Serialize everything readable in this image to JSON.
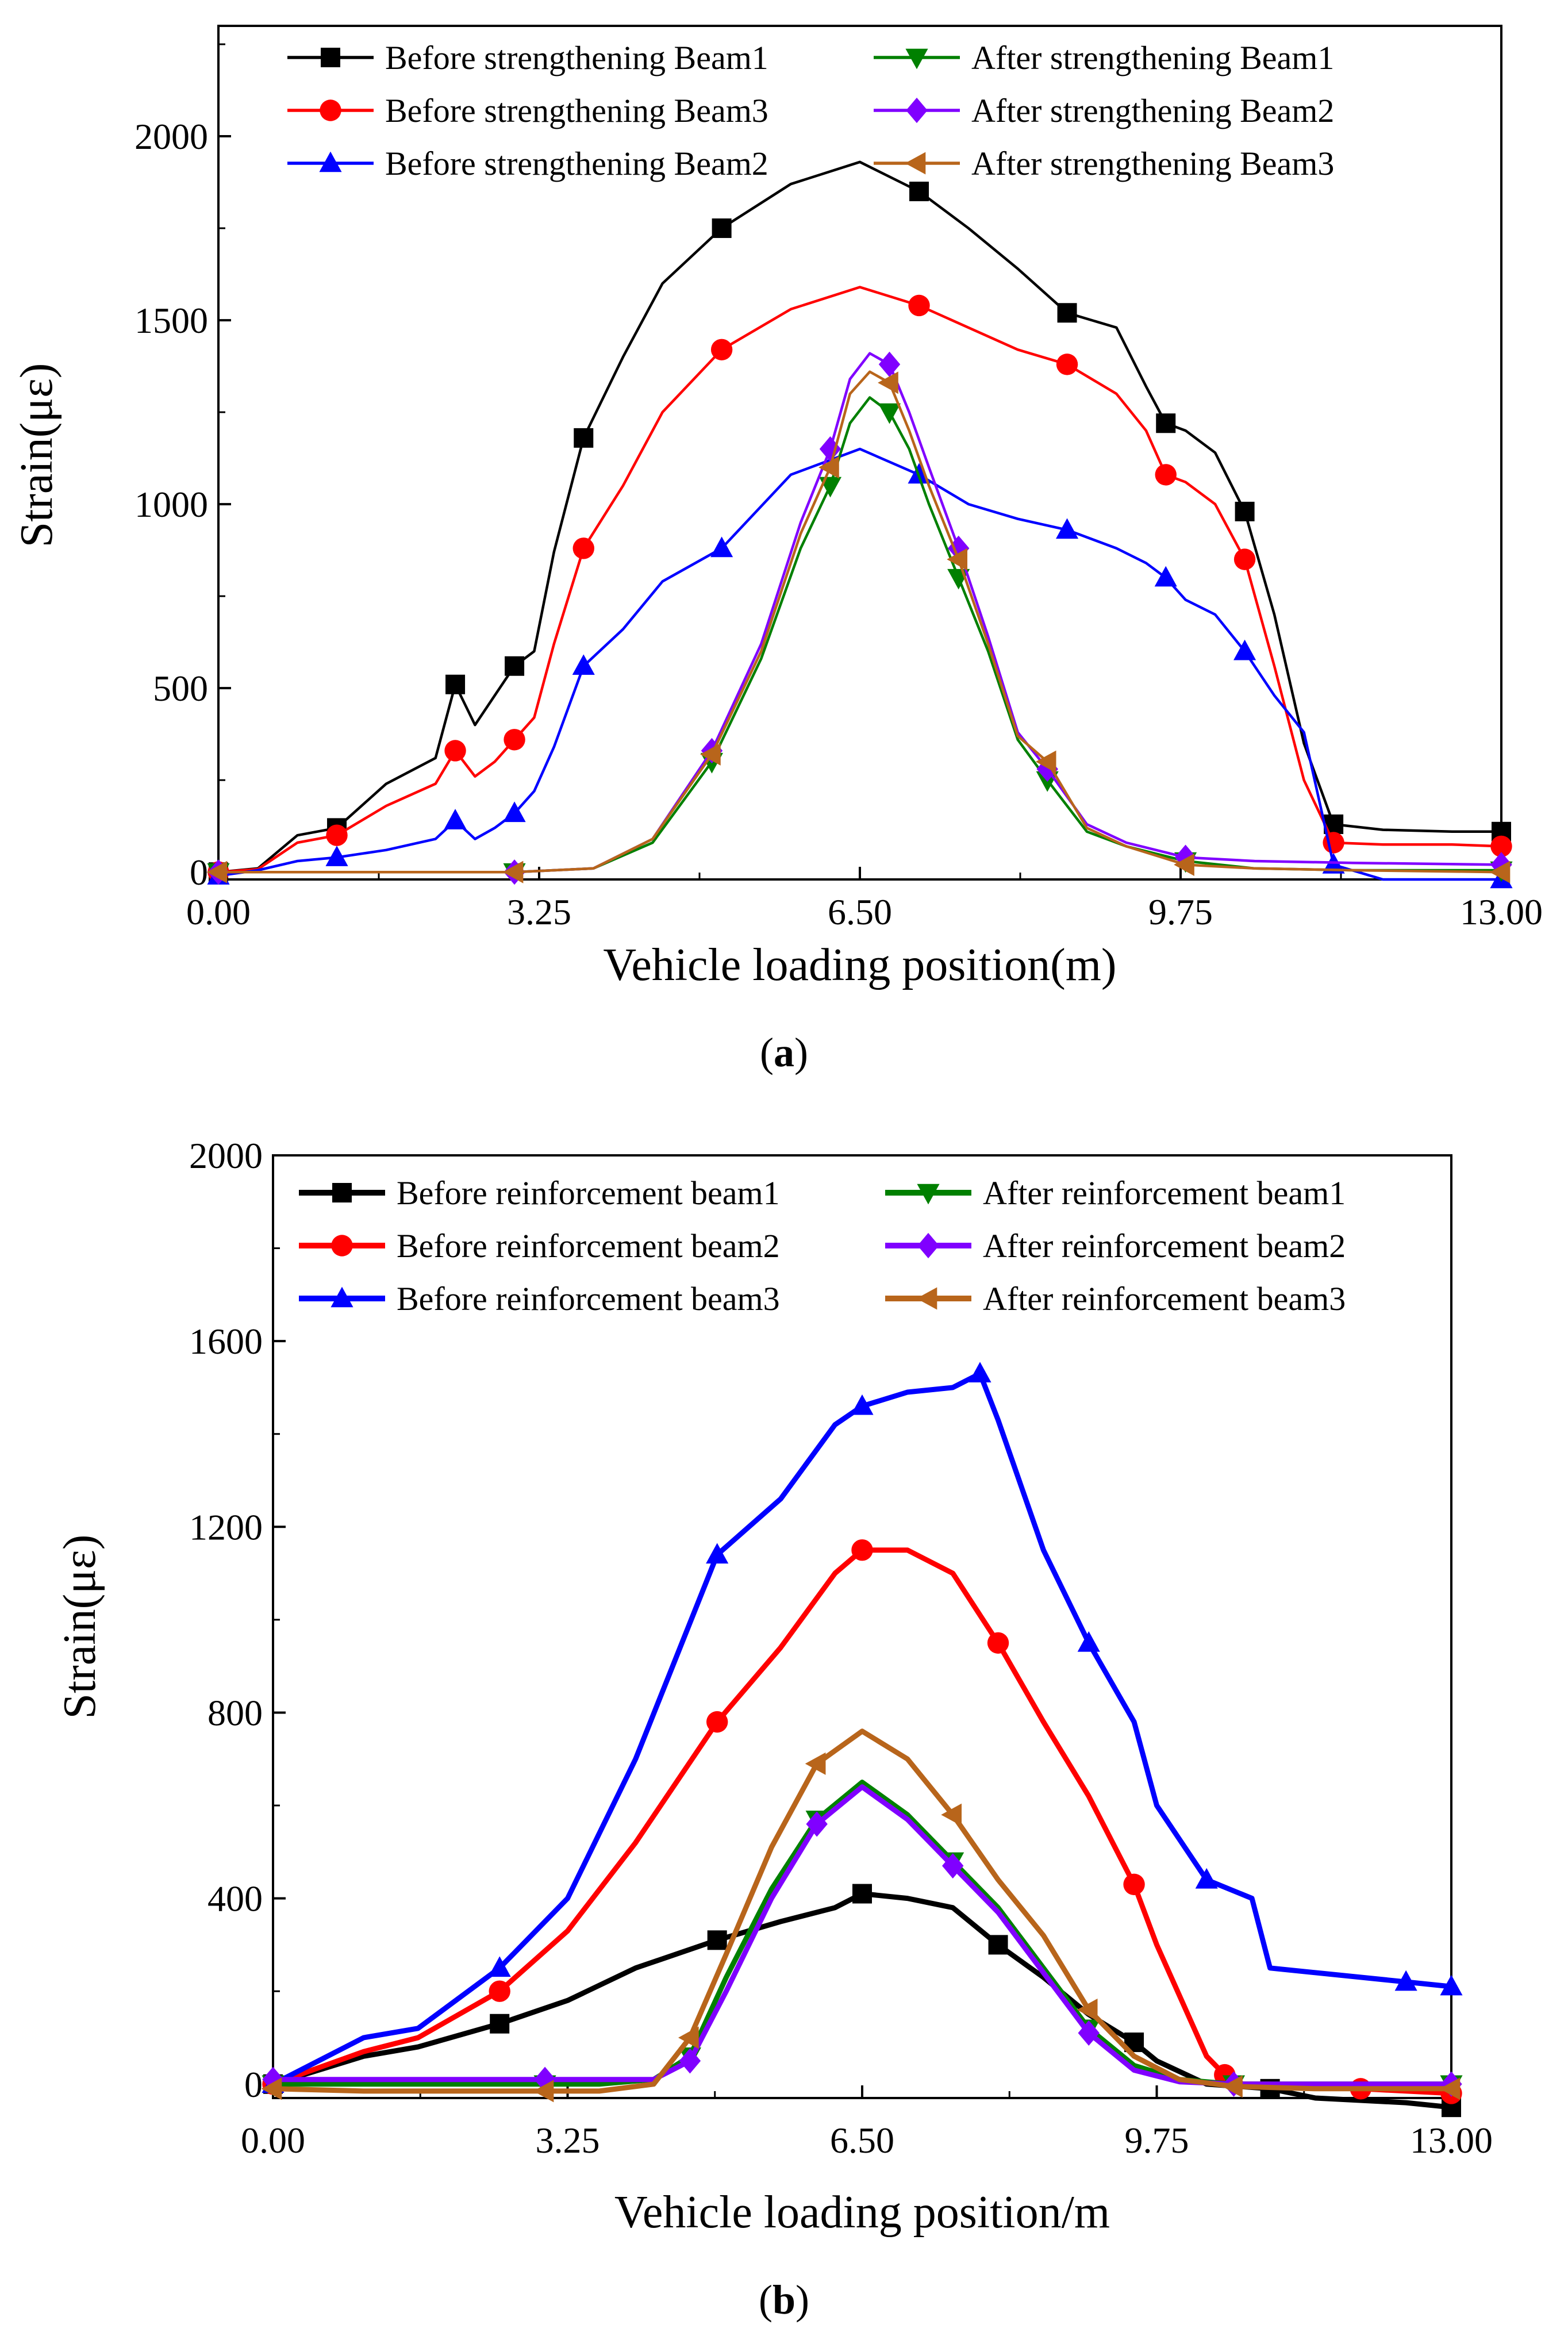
{
  "chart_data": [
    {
      "panel": "a",
      "caption_letter": "a",
      "type": "line",
      "xlabel": "Vehicle loading position(m)",
      "ylabel": "Strain(με)",
      "xlim": [
        0,
        13
      ],
      "ylim": [
        -20,
        2300
      ],
      "xticks": [
        0,
        3.25,
        6.5,
        9.75,
        13
      ],
      "xtick_labels": [
        "0.00",
        "3.25",
        "6.50",
        "9.75",
        "13.00"
      ],
      "yticks": [
        0,
        500,
        1000,
        1500,
        2000
      ],
      "ytick_labels": [
        "0",
        "500",
        "1000",
        "1500",
        "2000"
      ],
      "legend_position": "top",
      "series": [
        {
          "name": "Before strengthening Beam1",
          "color": "#000000",
          "marker": "square",
          "x": [
            0,
            0.4,
            0.8,
            1.2,
            1.7,
            2.2,
            2.4,
            2.6,
            2.8,
            3.0,
            3.2,
            3.4,
            3.7,
            4.1,
            4.5,
            5.1,
            5.8,
            6.5,
            7.1,
            7.6,
            8.1,
            8.6,
            9.1,
            9.4,
            9.6,
            9.8,
            10.1,
            10.4,
            10.7,
            11.0,
            11.3,
            11.8,
            12.5,
            13.0
          ],
          "y": [
            0,
            10,
            100,
            120,
            240,
            310,
            510,
            400,
            480,
            560,
            600,
            870,
            1180,
            1400,
            1600,
            1750,
            1870,
            1930,
            1850,
            1750,
            1640,
            1520,
            1480,
            1320,
            1220,
            1200,
            1140,
            980,
            700,
            350,
            130,
            115,
            110,
            110
          ]
        },
        {
          "name": "Before strengthening Beam3",
          "color": "#ff0000",
          "marker": "circle",
          "x": [
            0,
            0.4,
            0.8,
            1.2,
            1.7,
            2.2,
            2.4,
            2.6,
            2.8,
            3.0,
            3.2,
            3.4,
            3.7,
            4.1,
            4.5,
            5.1,
            5.8,
            6.5,
            7.1,
            7.6,
            8.1,
            8.6,
            9.1,
            9.4,
            9.6,
            9.8,
            10.1,
            10.4,
            10.7,
            11.0,
            11.3,
            11.8,
            12.5,
            13.0
          ],
          "y": [
            0,
            8,
            80,
            100,
            180,
            240,
            330,
            260,
            300,
            360,
            420,
            620,
            880,
            1050,
            1250,
            1420,
            1530,
            1590,
            1540,
            1480,
            1420,
            1380,
            1300,
            1200,
            1080,
            1060,
            1000,
            850,
            560,
            250,
            80,
            75,
            75,
            70
          ]
        },
        {
          "name": "Before strengthening Beam2",
          "color": "#0000ff",
          "marker": "triangle-up",
          "x": [
            0,
            0.4,
            0.8,
            1.2,
            1.7,
            2.2,
            2.4,
            2.6,
            2.8,
            3.0,
            3.2,
            3.4,
            3.7,
            4.1,
            4.5,
            5.1,
            5.8,
            6.5,
            7.1,
            7.6,
            8.1,
            8.6,
            9.1,
            9.4,
            9.6,
            9.8,
            10.1,
            10.4,
            10.7,
            11.0,
            11.3,
            11.8,
            12.5,
            13.0
          ],
          "y": [
            -10,
            5,
            30,
            40,
            60,
            90,
            140,
            90,
            120,
            160,
            220,
            340,
            560,
            660,
            790,
            880,
            1080,
            1150,
            1080,
            1000,
            960,
            930,
            880,
            840,
            800,
            740,
            700,
            600,
            480,
            380,
            20,
            -20,
            -20,
            -20
          ]
        },
        {
          "name": "After strengthening Beam1",
          "color": "#008000",
          "marker": "triangle-down",
          "x": [
            0,
            1,
            2,
            3,
            3.8,
            4.4,
            5.0,
            5.5,
            5.9,
            6.2,
            6.4,
            6.6,
            6.8,
            7.0,
            7.2,
            7.5,
            7.8,
            8.1,
            8.4,
            8.8,
            9.2,
            9.8,
            10.5,
            11.5,
            13.0
          ],
          "y": [
            0,
            0,
            0,
            0,
            10,
            80,
            300,
            580,
            880,
            1050,
            1220,
            1290,
            1250,
            1150,
            1000,
            800,
            600,
            360,
            250,
            110,
            70,
            30,
            10,
            5,
            5
          ]
        },
        {
          "name": "After strengthening Beam2",
          "color": "#8000ff",
          "marker": "diamond",
          "x": [
            0,
            1,
            2,
            3,
            3.8,
            4.4,
            5.0,
            5.5,
            5.9,
            6.2,
            6.4,
            6.6,
            6.8,
            7.0,
            7.2,
            7.5,
            7.8,
            8.1,
            8.4,
            8.8,
            9.2,
            9.8,
            10.5,
            11.5,
            13.0
          ],
          "y": [
            0,
            0,
            0,
            0,
            10,
            90,
            330,
            620,
            950,
            1150,
            1340,
            1410,
            1380,
            1250,
            1100,
            880,
            640,
            380,
            280,
            130,
            80,
            40,
            30,
            25,
            20
          ]
        },
        {
          "name": "After strengthening Beam3",
          "color": "#b8651b",
          "marker": "triangle-left",
          "x": [
            0,
            1,
            2,
            3,
            3.8,
            4.4,
            5.0,
            5.5,
            5.9,
            6.2,
            6.4,
            6.6,
            6.8,
            7.0,
            7.2,
            7.5,
            7.8,
            8.1,
            8.4,
            8.8,
            9.2,
            9.8,
            10.5,
            11.5,
            13.0
          ],
          "y": [
            0,
            0,
            0,
            0,
            10,
            90,
            320,
            600,
            920,
            1100,
            1300,
            1360,
            1330,
            1200,
            1050,
            850,
            620,
            370,
            300,
            120,
            70,
            20,
            10,
            5,
            0
          ]
        }
      ]
    },
    {
      "panel": "b",
      "caption_letter": "b",
      "type": "line",
      "xlabel": "Vehicle loading position/m",
      "ylabel": "Strain(με)",
      "xlim": [
        0,
        13
      ],
      "ylim": [
        -30,
        2000
      ],
      "xticks": [
        0,
        3.25,
        6.5,
        9.75,
        13
      ],
      "xtick_labels": [
        "0.00",
        "3.25",
        "6.50",
        "9.75",
        "13.00"
      ],
      "yticks": [
        0,
        400,
        800,
        1200,
        1600,
        2000
      ],
      "ytick_labels": [
        "0",
        "400",
        "800",
        "1200",
        "1600",
        "2000"
      ],
      "legend_position": "top",
      "series": [
        {
          "name": "Before reinforcement beam1",
          "color": "#000000",
          "marker": "square",
          "x": [
            0,
            1,
            1.6,
            2.5,
            3.25,
            4.0,
            4.9,
            5.6,
            6.2,
            6.5,
            7.0,
            7.5,
            8.0,
            8.5,
            9.0,
            9.5,
            9.75,
            10.3,
            11.0,
            11.5,
            12.5,
            13.0
          ],
          "y": [
            0,
            60,
            80,
            130,
            180,
            250,
            310,
            350,
            380,
            410,
            400,
            380,
            300,
            230,
            150,
            90,
            50,
            0,
            -10,
            -30,
            -40,
            -50
          ]
        },
        {
          "name": "Before reinforcement beam2",
          "color": "#ff0000",
          "marker": "circle",
          "x": [
            0,
            1,
            1.6,
            2.5,
            3.25,
            4.0,
            4.9,
            5.6,
            6.2,
            6.5,
            7.0,
            7.5,
            8.0,
            8.5,
            9.0,
            9.5,
            9.75,
            10.3,
            10.5,
            10.7,
            11.0,
            12.0,
            13.0
          ],
          "y": [
            0,
            70,
            100,
            200,
            330,
            520,
            780,
            940,
            1100,
            1150,
            1150,
            1100,
            950,
            780,
            620,
            430,
            300,
            60,
            20,
            0,
            0,
            -10,
            -20
          ]
        },
        {
          "name": "Before reinforcement beam3",
          "color": "#0000ff",
          "marker": "triangle-up",
          "x": [
            0,
            1,
            1.6,
            2.5,
            3.25,
            4.0,
            4.9,
            5.6,
            6.2,
            6.5,
            7.0,
            7.5,
            7.8,
            8.0,
            8.5,
            9.0,
            9.5,
            9.75,
            10.3,
            10.8,
            11.0,
            12.5,
            13.0
          ],
          "y": [
            0,
            100,
            120,
            250,
            400,
            700,
            1140,
            1260,
            1420,
            1460,
            1490,
            1500,
            1530,
            1430,
            1150,
            950,
            780,
            600,
            440,
            400,
            250,
            220,
            210
          ]
        },
        {
          "name": "After reinforcement beam1",
          "color": "#008000",
          "marker": "triangle-down",
          "x": [
            0,
            1,
            2,
            3,
            3.6,
            4.2,
            4.6,
            5.0,
            5.5,
            6.0,
            6.5,
            7.0,
            7.5,
            8.0,
            8.5,
            9.0,
            9.5,
            10.0,
            10.6,
            11.5,
            13.0
          ],
          "y": [
            0,
            0,
            0,
            0,
            0,
            10,
            60,
            230,
            420,
            570,
            650,
            580,
            480,
            380,
            250,
            120,
            40,
            10,
            0,
            0,
            0
          ]
        },
        {
          "name": "After reinforcement beam2",
          "color": "#8000ff",
          "marker": "diamond",
          "x": [
            0,
            1,
            2,
            3,
            3.6,
            4.2,
            4.6,
            5.0,
            5.5,
            6.0,
            6.5,
            7.0,
            7.5,
            8.0,
            8.5,
            9.0,
            9.5,
            10.0,
            10.6,
            11.5,
            13.0
          ],
          "y": [
            10,
            10,
            10,
            10,
            10,
            10,
            50,
            200,
            400,
            560,
            640,
            570,
            470,
            370,
            240,
            110,
            30,
            5,
            0,
            0,
            0
          ]
        },
        {
          "name": "After reinforcement beam3",
          "color": "#b8651b",
          "marker": "triangle-left",
          "x": [
            0,
            1,
            2,
            3,
            3.6,
            4.2,
            4.6,
            5.0,
            5.5,
            6.0,
            6.5,
            7.0,
            7.5,
            8.0,
            8.5,
            9.0,
            9.5,
            10.0,
            10.6,
            11.5,
            13.0
          ],
          "y": [
            -10,
            -15,
            -15,
            -15,
            -15,
            0,
            100,
            280,
            510,
            690,
            760,
            700,
            580,
            440,
            320,
            160,
            60,
            10,
            -5,
            -10,
            -10
          ]
        }
      ]
    }
  ]
}
